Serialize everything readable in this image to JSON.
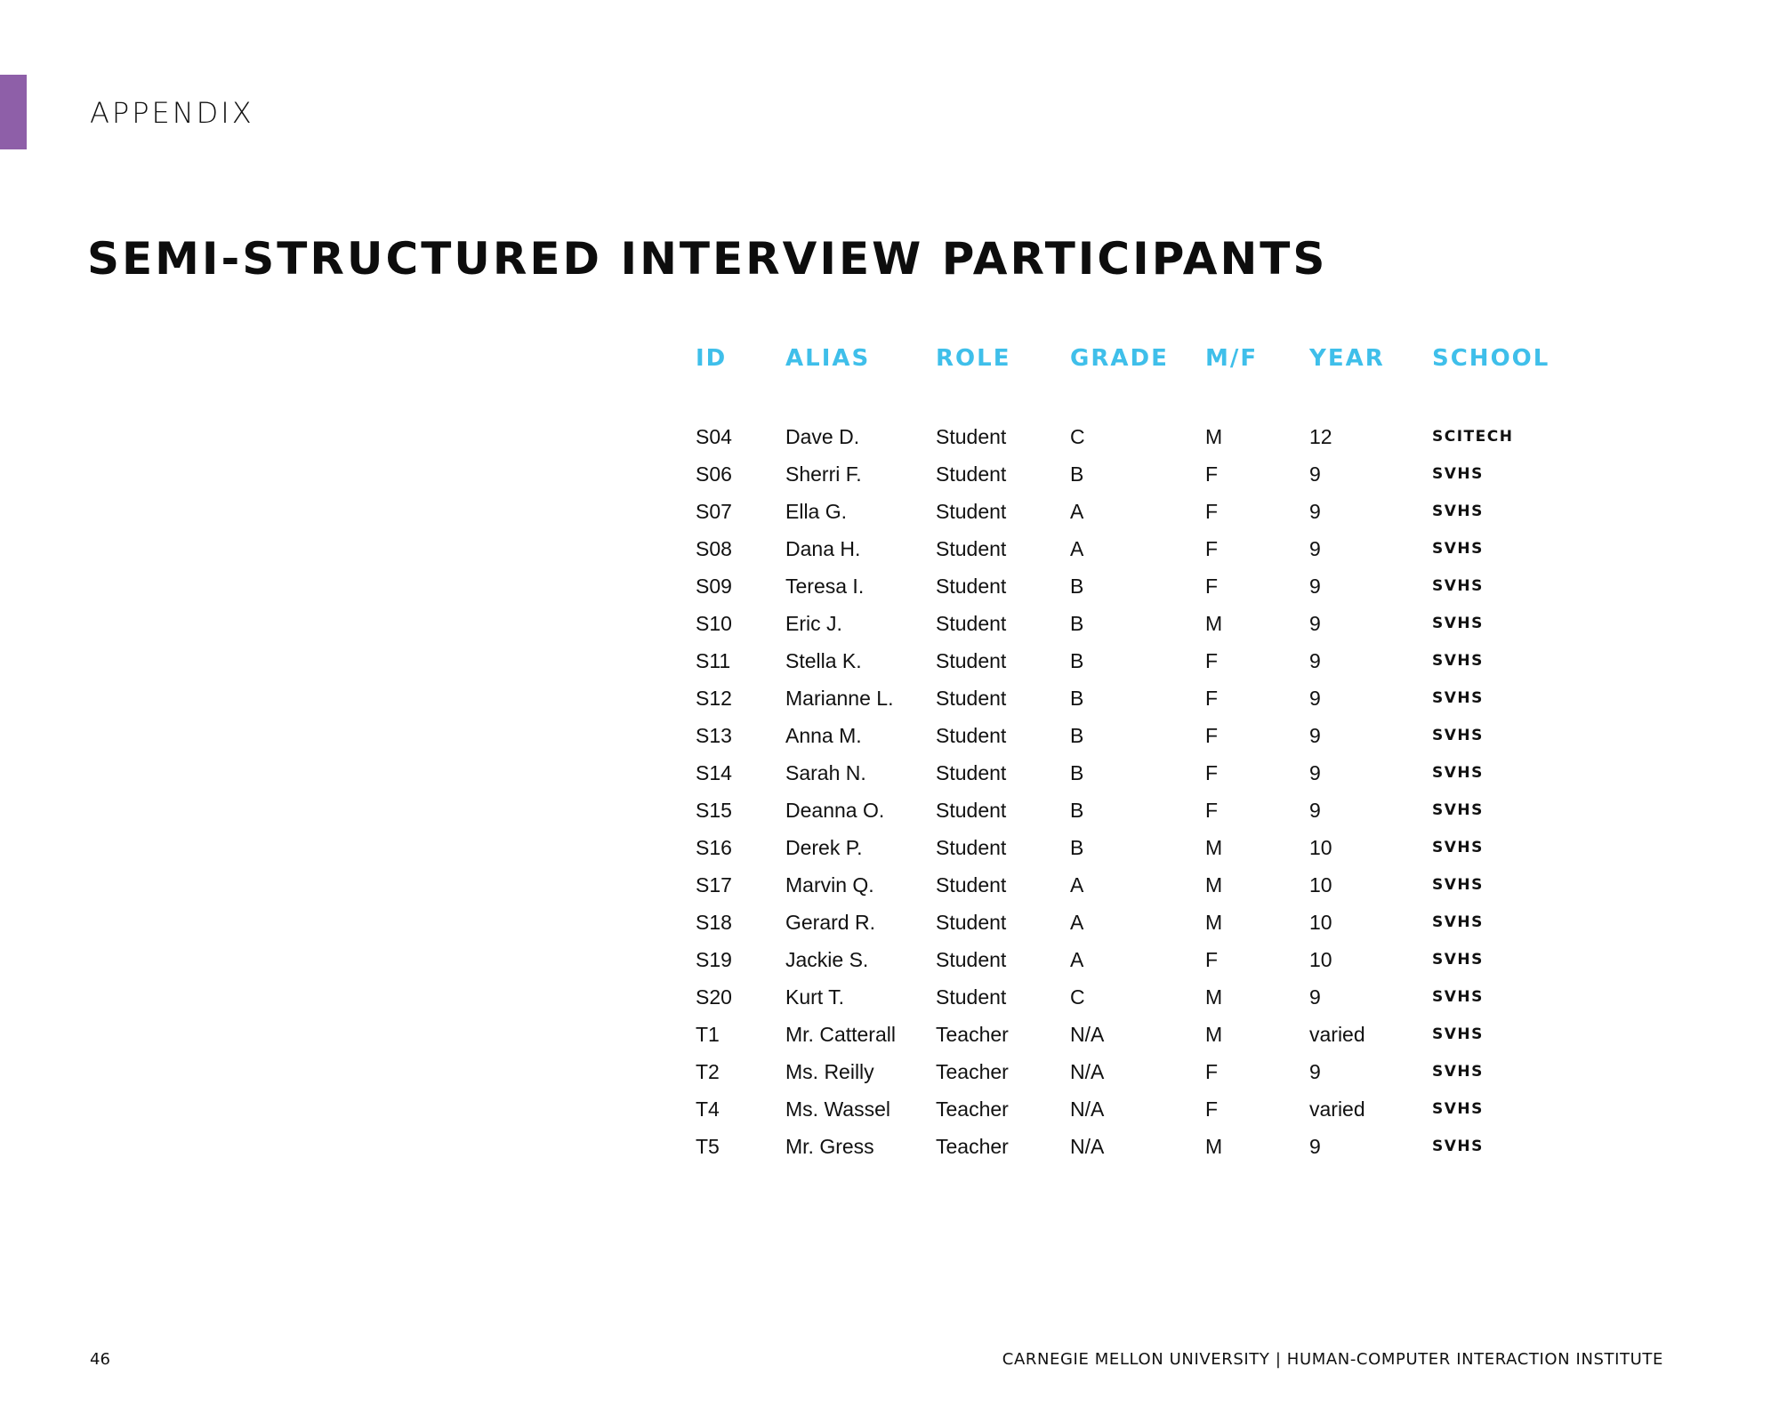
{
  "header": {
    "section_label": "APPENDIX",
    "accent_color": "#8e5fa8"
  },
  "page_title": "SEMI-STRUCTURED INTERVIEW PARTICIPANTS",
  "table": {
    "header_color": "#3fbfea",
    "columns": [
      "ID",
      "ALIAS",
      "ROLE",
      "GRADE",
      "M/F",
      "YEAR",
      "SCHOOL"
    ],
    "rows": [
      [
        "S04",
        "Dave D.",
        "Student",
        "C",
        "M",
        "12",
        "SCITECH"
      ],
      [
        "S06",
        "Sherri F.",
        "Student",
        "B",
        "F",
        "9",
        "SVHS"
      ],
      [
        "S07",
        "Ella G.",
        "Student",
        "A",
        "F",
        "9",
        "SVHS"
      ],
      [
        "S08",
        "Dana H.",
        "Student",
        "A",
        "F",
        "9",
        "SVHS"
      ],
      [
        "S09",
        "Teresa I.",
        "Student",
        "B",
        "F",
        "9",
        "SVHS"
      ],
      [
        "S10",
        "Eric J.",
        "Student",
        "B",
        "M",
        "9",
        "SVHS"
      ],
      [
        "S11",
        "Stella K.",
        "Student",
        "B",
        "F",
        "9",
        "SVHS"
      ],
      [
        "S12",
        "Marianne L.",
        "Student",
        "B",
        "F",
        "9",
        "SVHS"
      ],
      [
        "S13",
        "Anna M.",
        "Student",
        "B",
        "F",
        "9",
        "SVHS"
      ],
      [
        "S14",
        "Sarah N.",
        "Student",
        "B",
        "F",
        "9",
        "SVHS"
      ],
      [
        "S15",
        "Deanna O.",
        "Student",
        "B",
        "F",
        "9",
        "SVHS"
      ],
      [
        "S16",
        "Derek P.",
        "Student",
        "B",
        "M",
        "10",
        "SVHS"
      ],
      [
        "S17",
        "Marvin Q.",
        "Student",
        "A",
        "M",
        "10",
        "SVHS"
      ],
      [
        "S18",
        "Gerard R.",
        "Student",
        "A",
        "M",
        "10",
        "SVHS"
      ],
      [
        "S19",
        "Jackie S.",
        "Student",
        "A",
        "F",
        "10",
        "SVHS"
      ],
      [
        "S20",
        "Kurt T.",
        "Student",
        "C",
        "M",
        "9",
        "SVHS"
      ],
      [
        "T1",
        "Mr. Catterall",
        "Teacher",
        "N/A",
        "M",
        "varied",
        "SVHS"
      ],
      [
        "T2",
        "Ms. Reilly",
        "Teacher",
        "N/A",
        "F",
        "9",
        "SVHS"
      ],
      [
        "T4",
        "Ms. Wassel",
        "Teacher",
        "N/A",
        "F",
        "varied",
        "SVHS"
      ],
      [
        "T5",
        "Mr. Gress",
        "Teacher",
        "N/A",
        "M",
        "9",
        "SVHS"
      ]
    ]
  },
  "footer": {
    "page_number": "46",
    "text": "CARNEGIE MELLON UNIVERSITY | HUMAN-COMPUTER INTERACTION INSTITUTE"
  }
}
